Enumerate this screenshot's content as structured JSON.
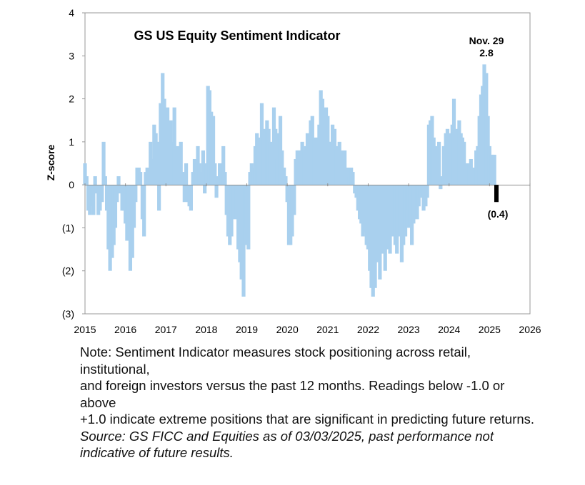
{
  "chart_data": {
    "type": "bar",
    "title": "GS US Equity Sentiment Indicator",
    "ylabel": "Z-score",
    "xlabel": "",
    "xlim": [
      2015,
      2026
    ],
    "ylim": [
      -3,
      4
    ],
    "x_ticks": [
      "2015",
      "2016",
      "2017",
      "2018",
      "2019",
      "2020",
      "2021",
      "2022",
      "2023",
      "2024",
      "2025",
      "2026"
    ],
    "y_ticks": [
      "(3)",
      "(2)",
      "(1)",
      "0",
      "1",
      "2",
      "3",
      "4"
    ],
    "colors": {
      "bars": "#a9d0ee",
      "highlight": "#000000",
      "zero_line": "#8c8c8c",
      "frame": "#999999"
    },
    "annotations": [
      {
        "line1": "Nov. 29",
        "line2": "2.8",
        "x": 2024.92,
        "y": 2.8
      },
      {
        "line1": "(0.4)",
        "x": 2025.17,
        "y": -0.4
      }
    ],
    "series": [
      {
        "points": [
          [
            2015.0,
            0.5
          ],
          [
            2015.04,
            0.2
          ],
          [
            2015.08,
            -0.6
          ],
          [
            2015.12,
            -0.7
          ],
          [
            2015.17,
            -0.5
          ],
          [
            2015.21,
            -0.7
          ],
          [
            2015.25,
            0.2
          ],
          [
            2015.29,
            -0.2
          ],
          [
            2015.33,
            -0.7
          ],
          [
            2015.37,
            -0.6
          ],
          [
            2015.42,
            -0.4
          ],
          [
            2015.46,
            1.0
          ],
          [
            2015.5,
            0.2
          ],
          [
            2015.54,
            -0.6
          ],
          [
            2015.58,
            -1.5
          ],
          [
            2015.62,
            -2.0
          ],
          [
            2015.67,
            -1.7
          ],
          [
            2015.71,
            -1.4
          ],
          [
            2015.75,
            -1.0
          ],
          [
            2015.79,
            -0.4
          ],
          [
            2015.83,
            0.2
          ],
          [
            2015.87,
            -0.2
          ],
          [
            2015.92,
            -0.6
          ],
          [
            2015.96,
            -0.6
          ],
          [
            2016.0,
            -0.9
          ],
          [
            2016.04,
            -1.3
          ],
          [
            2016.08,
            -1.2
          ],
          [
            2016.12,
            -2.0
          ],
          [
            2016.17,
            -1.7
          ],
          [
            2016.21,
            -1.0
          ],
          [
            2016.25,
            -0.4
          ],
          [
            2016.29,
            0.4
          ],
          [
            2016.33,
            0.4
          ],
          [
            2016.37,
            0.3
          ],
          [
            2016.42,
            -0.8
          ],
          [
            2016.46,
            -1.2
          ],
          [
            2016.5,
            0.3
          ],
          [
            2016.54,
            0.4
          ],
          [
            2016.58,
            0.4
          ],
          [
            2016.62,
            1.0
          ],
          [
            2016.67,
            0.6
          ],
          [
            2016.71,
            1.4
          ],
          [
            2016.75,
            1.2
          ],
          [
            2016.79,
            1.0
          ],
          [
            2016.83,
            -0.6
          ],
          [
            2016.87,
            1.9
          ],
          [
            2016.92,
            2.6
          ],
          [
            2016.96,
            2.0
          ],
          [
            2017.0,
            1.6
          ],
          [
            2017.04,
            1.8
          ],
          [
            2017.08,
            1.2
          ],
          [
            2017.12,
            1.5
          ],
          [
            2017.17,
            1.0
          ],
          [
            2017.21,
            1.8
          ],
          [
            2017.25,
            0.5
          ],
          [
            2017.29,
            0.9
          ],
          [
            2017.33,
            0.8
          ],
          [
            2017.37,
            1.0
          ],
          [
            2017.42,
            0.3
          ],
          [
            2017.46,
            -0.4
          ],
          [
            2017.5,
            0.5
          ],
          [
            2017.54,
            -0.4
          ],
          [
            2017.58,
            -0.5
          ],
          [
            2017.62,
            -0.6
          ],
          [
            2017.67,
            0.3
          ],
          [
            2017.71,
            0.6
          ],
          [
            2017.75,
            0.5
          ],
          [
            2017.79,
            0.9
          ],
          [
            2017.83,
            0.5
          ],
          [
            2017.87,
            0.3
          ],
          [
            2017.92,
            0.8
          ],
          [
            2017.96,
            -0.2
          ],
          [
            2018.0,
            0.5
          ],
          [
            2018.04,
            2.3
          ],
          [
            2018.08,
            2.2
          ],
          [
            2018.12,
            1.7
          ],
          [
            2018.17,
            1.6
          ],
          [
            2018.21,
            0.5
          ],
          [
            2018.25,
            -0.3
          ],
          [
            2018.29,
            0.2
          ],
          [
            2018.33,
            0.5
          ],
          [
            2018.37,
            0.5
          ],
          [
            2018.42,
            0.9
          ],
          [
            2018.46,
            0.3
          ],
          [
            2018.5,
            -0.7
          ],
          [
            2018.54,
            -1.2
          ],
          [
            2018.58,
            -1.4
          ],
          [
            2018.62,
            -1.2
          ],
          [
            2018.67,
            -0.8
          ],
          [
            2018.71,
            -0.3
          ],
          [
            2018.75,
            -0.8
          ],
          [
            2018.79,
            -1.5
          ],
          [
            2018.83,
            -1.8
          ],
          [
            2018.87,
            -2.2
          ],
          [
            2018.92,
            -2.6
          ],
          [
            2018.96,
            -1.4
          ],
          [
            2019.0,
            -1.0
          ],
          [
            2019.04,
            -1.5
          ],
          [
            2019.08,
            0.3
          ],
          [
            2019.12,
            0.5
          ],
          [
            2019.17,
            0.4
          ],
          [
            2019.21,
            0.9
          ],
          [
            2019.25,
            1.2
          ],
          [
            2019.29,
            1.1
          ],
          [
            2019.33,
            1.0
          ],
          [
            2019.37,
            1.9
          ],
          [
            2019.42,
            1.3
          ],
          [
            2019.46,
            0.6
          ],
          [
            2019.5,
            1.5
          ],
          [
            2019.54,
            1.3
          ],
          [
            2019.58,
            1.0
          ],
          [
            2019.62,
            0.6
          ],
          [
            2019.67,
            1.8
          ],
          [
            2019.71,
            1.3
          ],
          [
            2019.75,
            0.6
          ],
          [
            2019.79,
            1.2
          ],
          [
            2019.83,
            1.6
          ],
          [
            2019.87,
            0.8
          ],
          [
            2019.92,
            0.4
          ],
          [
            2019.96,
            0.2
          ],
          [
            2020.0,
            -0.4
          ],
          [
            2020.04,
            -1.4
          ],
          [
            2020.08,
            -1.4
          ],
          [
            2020.12,
            -1.2
          ],
          [
            2020.17,
            -0.7
          ],
          [
            2020.21,
            0.6
          ],
          [
            2020.25,
            0.8
          ],
          [
            2020.29,
            0.8
          ],
          [
            2020.33,
            0.8
          ],
          [
            2020.37,
            1.0
          ],
          [
            2020.42,
            0.8
          ],
          [
            2020.46,
            0.9
          ],
          [
            2020.5,
            1.2
          ],
          [
            2020.54,
            1.0
          ],
          [
            2020.58,
            1.5
          ],
          [
            2020.62,
            1.6
          ],
          [
            2020.67,
            1.1
          ],
          [
            2020.71,
            0.8
          ],
          [
            2020.75,
            1.1
          ],
          [
            2020.79,
            1.4
          ],
          [
            2020.83,
            2.2
          ],
          [
            2020.87,
            2.0
          ],
          [
            2020.92,
            1.4
          ],
          [
            2020.96,
            1.8
          ],
          [
            2021.0,
            1.6
          ],
          [
            2021.04,
            1.0
          ],
          [
            2021.08,
            1.0
          ],
          [
            2021.12,
            1.4
          ],
          [
            2021.17,
            1.3
          ],
          [
            2021.21,
            0.9
          ],
          [
            2021.25,
            0.6
          ],
          [
            2021.29,
            1.0
          ],
          [
            2021.33,
            0.8
          ],
          [
            2021.37,
            0.6
          ],
          [
            2021.42,
            0.8
          ],
          [
            2021.46,
            0.4
          ],
          [
            2021.5,
            0.4
          ],
          [
            2021.54,
            0.2
          ],
          [
            2021.58,
            0.4
          ],
          [
            2021.62,
            0.3
          ],
          [
            2021.67,
            -0.2
          ],
          [
            2021.71,
            -0.3
          ],
          [
            2021.75,
            -0.6
          ],
          [
            2021.79,
            -0.8
          ],
          [
            2021.83,
            -0.9
          ],
          [
            2021.87,
            -1.2
          ],
          [
            2021.92,
            -1.1
          ],
          [
            2021.96,
            -1.4
          ],
          [
            2022.0,
            -1.5
          ],
          [
            2022.04,
            -2.0
          ],
          [
            2022.08,
            -2.4
          ],
          [
            2022.12,
            -2.6
          ],
          [
            2022.17,
            -2.4
          ],
          [
            2022.21,
            -1.4
          ],
          [
            2022.25,
            -1.8
          ],
          [
            2022.29,
            -2.2
          ],
          [
            2022.33,
            -1.3
          ],
          [
            2022.37,
            -1.6
          ],
          [
            2022.42,
            -2.0
          ],
          [
            2022.46,
            -1.5
          ],
          [
            2022.5,
            -1.2
          ],
          [
            2022.54,
            -1.6
          ],
          [
            2022.58,
            -0.8
          ],
          [
            2022.62,
            -1.2
          ],
          [
            2022.67,
            -1.4
          ],
          [
            2022.71,
            -1.6
          ],
          [
            2022.75,
            -1.1
          ],
          [
            2022.79,
            -1.2
          ],
          [
            2022.83,
            -1.8
          ],
          [
            2022.87,
            -1.4
          ],
          [
            2022.92,
            -1.2
          ],
          [
            2022.96,
            -1.0
          ],
          [
            2023.0,
            -0.6
          ],
          [
            2023.04,
            -1.0
          ],
          [
            2023.08,
            -1.4
          ],
          [
            2023.12,
            -0.9
          ],
          [
            2023.17,
            -0.7
          ],
          [
            2023.21,
            -0.8
          ],
          [
            2023.25,
            -0.5
          ],
          [
            2023.29,
            -0.3
          ],
          [
            2023.33,
            -0.2
          ],
          [
            2023.37,
            -0.6
          ],
          [
            2023.42,
            -0.5
          ],
          [
            2023.46,
            -0.3
          ],
          [
            2023.5,
            1.4
          ],
          [
            2023.54,
            1.5
          ],
          [
            2023.58,
            1.6
          ],
          [
            2023.62,
            1.1
          ],
          [
            2023.67,
            0.9
          ],
          [
            2023.71,
            0.7
          ],
          [
            2023.75,
            1.0
          ],
          [
            2023.79,
            -0.1
          ],
          [
            2023.83,
            0.2
          ],
          [
            2023.87,
            0.9
          ],
          [
            2023.92,
            1.2
          ],
          [
            2023.96,
            1.3
          ],
          [
            2024.0,
            1.2
          ],
          [
            2024.04,
            0.9
          ],
          [
            2024.08,
            1.4
          ],
          [
            2024.12,
            2.0
          ],
          [
            2024.17,
            1.3
          ],
          [
            2024.21,
            0.7
          ],
          [
            2024.25,
            1.5
          ],
          [
            2024.29,
            1.2
          ],
          [
            2024.33,
            1.1
          ],
          [
            2024.37,
            1.0
          ],
          [
            2024.42,
            0.5
          ],
          [
            2024.46,
            0.4
          ],
          [
            2024.5,
            0.5
          ],
          [
            2024.54,
            0.6
          ],
          [
            2024.58,
            0.2
          ],
          [
            2024.62,
            0.4
          ],
          [
            2024.67,
            0.8
          ],
          [
            2024.71,
            0.9
          ],
          [
            2024.75,
            1.6
          ],
          [
            2024.79,
            2.1
          ],
          [
            2024.83,
            2.3
          ],
          [
            2024.87,
            2.8
          ],
          [
            2024.92,
            2.6
          ],
          [
            2024.96,
            1.6
          ],
          [
            2025.0,
            0.9
          ],
          [
            2025.04,
            0.7
          ],
          [
            2025.08,
            0.7
          ],
          [
            2025.12,
            0.7
          ]
        ]
      }
    ],
    "highlight_point": [
      2025.17,
      -0.4
    ]
  },
  "notes": {
    "line1": "Note: Sentiment Indicator measures stock positioning across retail,",
    "line2": "institutional,",
    "line3": "and foreign investors versus the past 12 months. Readings below -1.0 or",
    "line4": "above",
    "line5": "+1.0 indicate extreme positions that are significant in predicting future returns.",
    "source1": "Source: GS FICC and Equities as of 03/03/2025, past performance not",
    "source2": "indicative of future results."
  }
}
